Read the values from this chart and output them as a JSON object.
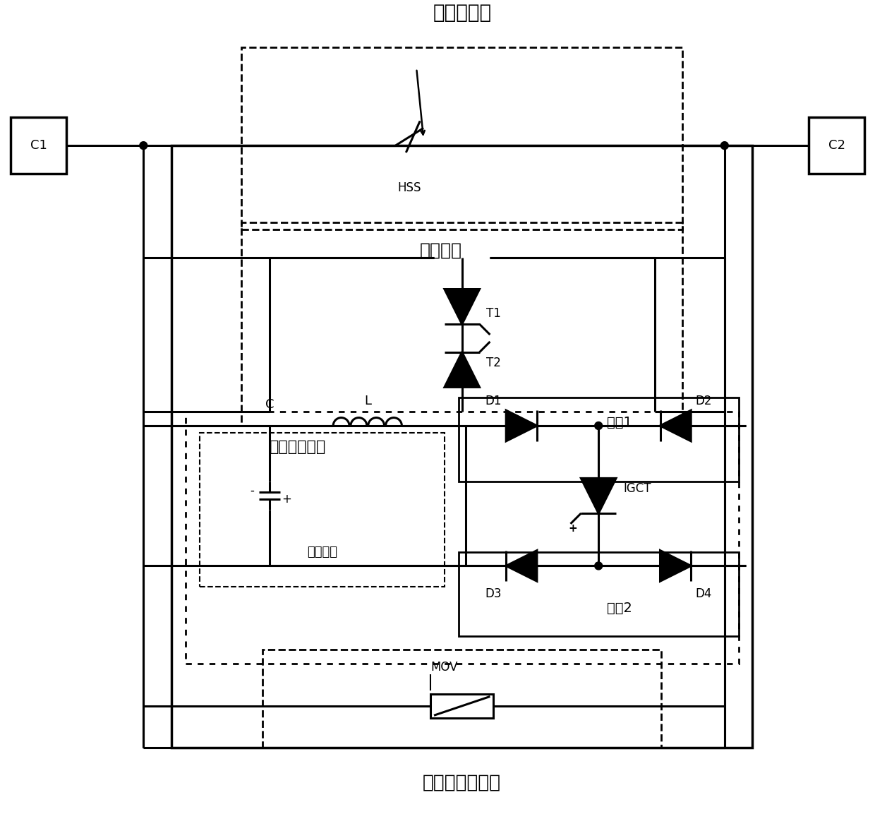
{
  "bg_color": "#ffffff",
  "fig_width": 12.4,
  "fig_height": 11.6,
  "labels": {
    "C1": "C1",
    "C2": "C2",
    "HSS": "HSS",
    "T1": "T1",
    "T2": "T2",
    "D1": "D1",
    "D2": "D2",
    "D3": "D3",
    "D4": "D4",
    "IGCT": "IGCT",
    "C": "C",
    "L": "L",
    "MOV": "MOV",
    "plus": "+",
    "minus": "-",
    "main_circuit": "主电流回路",
    "freewheeling": "续流支路",
    "current_transfer": "电流转移支路",
    "resonant": "振荡支路",
    "branch1": "支路1",
    "branch2": "支路2",
    "overvoltage": "过电压限制支路"
  }
}
